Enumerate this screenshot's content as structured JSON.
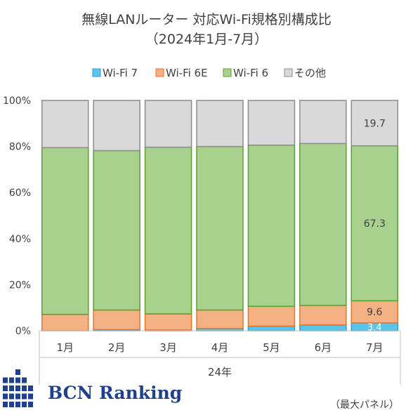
{
  "chart_data": {
    "type": "bar",
    "stacked": true,
    "percent": true,
    "title": "無線LANルーター 対応Wi-Fi規格別構成比",
    "subtitle": "（2024年1月-7月）",
    "categories": [
      "1月",
      "2月",
      "3月",
      "4月",
      "5月",
      "6月",
      "7月"
    ],
    "group_label": "24年",
    "ylim": [
      0,
      100
    ],
    "yticks": [
      "0%",
      "20%",
      "40%",
      "60%",
      "80%",
      "100%"
    ],
    "legend_position": "top",
    "series": [
      {
        "name": "Wi-Fi 7",
        "color": "#5bc4ea",
        "values": [
          0,
          0.5,
          0.3,
          1.0,
          2.0,
          2.5,
          3.4
        ]
      },
      {
        "name": "Wi-Fi 6E",
        "color": "#f4b183",
        "values": [
          7.1,
          8.5,
          7.0,
          8.0,
          8.6,
          8.5,
          9.6
        ]
      },
      {
        "name": "Wi-Fi 6",
        "color": "#a9d18e",
        "values": [
          72.4,
          69.2,
          72.4,
          71.0,
          70.0,
          70.3,
          67.3
        ]
      },
      {
        "name": "その他",
        "color": "#d9d9d9",
        "values": [
          20.5,
          21.8,
          20.3,
          20.0,
          19.4,
          18.7,
          19.7
        ]
      }
    ],
    "data_labels": [
      {
        "category": "7月",
        "series": "Wi-Fi 7",
        "text": "3.4"
      },
      {
        "category": "7月",
        "series": "Wi-Fi 6E",
        "text": "9.6"
      },
      {
        "category": "7月",
        "series": "Wi-Fi 6",
        "text": "67.3"
      },
      {
        "category": "7月",
        "series": "その他",
        "text": "19.7"
      }
    ]
  },
  "colors": {
    "border_wifi7": "#2e9fd0",
    "border_wifi6e": "#e8742a",
    "border_wifi6": "#5aa02c",
    "border_other": "#8c8c8c"
  },
  "branding": {
    "name": "BCN Ranking",
    "logo_color": "#1f3f8f"
  },
  "footnote": "（最大パネル）"
}
